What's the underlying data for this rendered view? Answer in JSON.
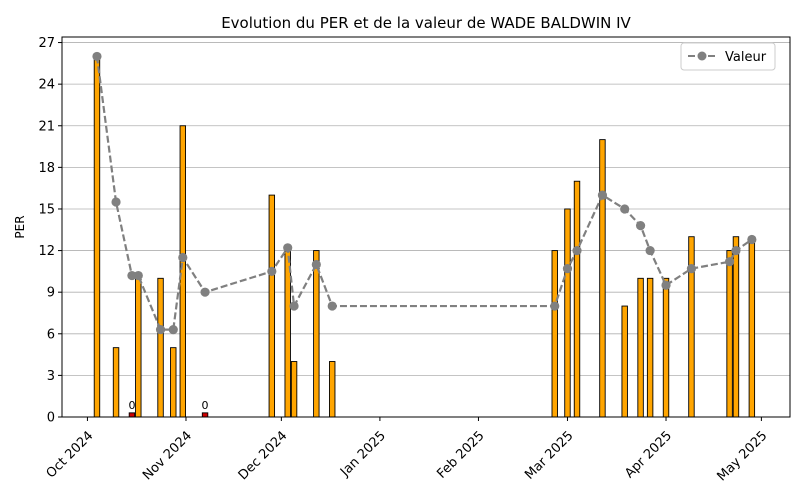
{
  "chart_data": {
    "type": "bar",
    "title": "Evolution du PER et de la valeur de WADE BALDWIN IV",
    "xlabel": "",
    "ylabel": "PER",
    "ylim": [
      0,
      27.4
    ],
    "yticks": [
      0,
      3,
      6,
      9,
      12,
      15,
      18,
      21,
      24,
      27
    ],
    "x_range": [
      "2024-09-23",
      "2025-05-10"
    ],
    "xticks": [
      {
        "date": "2024-10-01",
        "label": "Oct 2024"
      },
      {
        "date": "2024-11-01",
        "label": "Nov 2024"
      },
      {
        "date": "2024-12-01",
        "label": "Dec 2024"
      },
      {
        "date": "2025-01-01",
        "label": "Jan 2025"
      },
      {
        "date": "2025-02-01",
        "label": "Feb 2025"
      },
      {
        "date": "2025-03-01",
        "label": "Mar 2025"
      },
      {
        "date": "2025-04-01",
        "label": "Apr 2025"
      },
      {
        "date": "2025-05-01",
        "label": "May 2025"
      }
    ],
    "grid": "horizontal",
    "legend_position": "top-right",
    "bar_color": "#FFA500",
    "zero_bar_color": "#CC0000",
    "line_color": "#808080",
    "bars": [
      {
        "date": "2024-10-04",
        "per": 26
      },
      {
        "date": "2024-10-10",
        "per": 5
      },
      {
        "date": "2024-10-15",
        "per": 0.3,
        "label": "0"
      },
      {
        "date": "2024-10-17",
        "per": 10
      },
      {
        "date": "2024-10-24",
        "per": 10
      },
      {
        "date": "2024-10-28",
        "per": 5
      },
      {
        "date": "2024-10-31",
        "per": 21
      },
      {
        "date": "2024-11-07",
        "per": 0.3,
        "label": "0"
      },
      {
        "date": "2024-11-28",
        "per": 16
      },
      {
        "date": "2024-12-03",
        "per": 12
      },
      {
        "date": "2024-12-05",
        "per": 4
      },
      {
        "date": "2024-12-12",
        "per": 12
      },
      {
        "date": "2024-12-17",
        "per": 4
      },
      {
        "date": "2025-02-25",
        "per": 12
      },
      {
        "date": "2025-03-01",
        "per": 15
      },
      {
        "date": "2025-03-04",
        "per": 17
      },
      {
        "date": "2025-03-12",
        "per": 20
      },
      {
        "date": "2025-03-19",
        "per": 8
      },
      {
        "date": "2025-03-24",
        "per": 10
      },
      {
        "date": "2025-03-27",
        "per": 10
      },
      {
        "date": "2025-04-01",
        "per": 10
      },
      {
        "date": "2025-04-09",
        "per": 13
      },
      {
        "date": "2025-04-21",
        "per": 12
      },
      {
        "date": "2025-04-23",
        "per": 13
      },
      {
        "date": "2025-04-28",
        "per": 13
      }
    ],
    "series": [
      {
        "name": "Valeur",
        "style": "dashed line with circle markers",
        "points": [
          {
            "date": "2024-10-04",
            "value": 26
          },
          {
            "date": "2024-10-10",
            "value": 15.5
          },
          {
            "date": "2024-10-15",
            "value": 10.2
          },
          {
            "date": "2024-10-17",
            "value": 10.2
          },
          {
            "date": "2024-10-24",
            "value": 6.3
          },
          {
            "date": "2024-10-28",
            "value": 6.3
          },
          {
            "date": "2024-10-31",
            "value": 11.5
          },
          {
            "date": "2024-11-07",
            "value": 9
          },
          {
            "date": "2024-11-28",
            "value": 10.5
          },
          {
            "date": "2024-12-03",
            "value": 12.2
          },
          {
            "date": "2024-12-05",
            "value": 8
          },
          {
            "date": "2024-12-12",
            "value": 11
          },
          {
            "date": "2024-12-17",
            "value": 8
          },
          {
            "date": "2025-02-25",
            "value": 8
          },
          {
            "date": "2025-03-01",
            "value": 10.7
          },
          {
            "date": "2025-03-04",
            "value": 12
          },
          {
            "date": "2025-03-12",
            "value": 16
          },
          {
            "date": "2025-03-19",
            "value": 15
          },
          {
            "date": "2025-03-24",
            "value": 13.8
          },
          {
            "date": "2025-03-27",
            "value": 12
          },
          {
            "date": "2025-04-01",
            "value": 9.5
          },
          {
            "date": "2025-04-09",
            "value": 10.7
          },
          {
            "date": "2025-04-21",
            "value": 11.2
          },
          {
            "date": "2025-04-23",
            "value": 12
          },
          {
            "date": "2025-04-28",
            "value": 12.8
          }
        ]
      }
    ]
  }
}
